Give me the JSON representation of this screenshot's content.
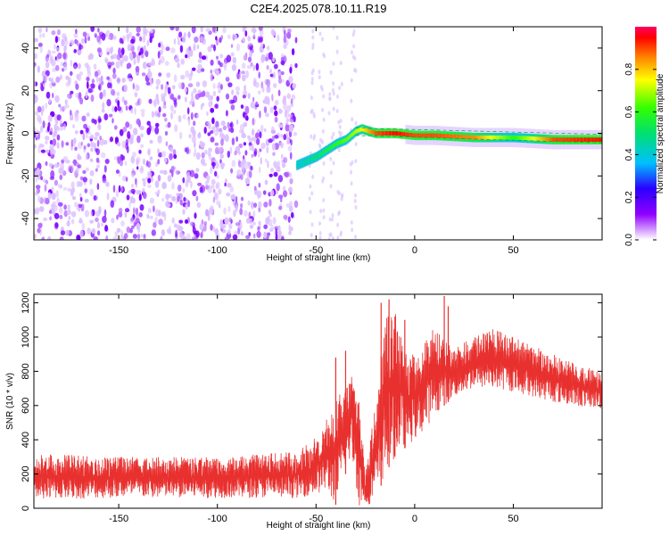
{
  "title": "C2E4.2025.078.10.11.R19",
  "chart_data": [
    {
      "type": "heatmap",
      "xlabel": "Height of straight line (km)",
      "ylabel": "Frequency (Hz)",
      "xlim": [
        -193,
        95
      ],
      "ylim": [
        -50,
        50
      ],
      "xticks": [
        -150,
        -100,
        -50,
        0,
        50
      ],
      "yticks": [
        -40,
        -20,
        0,
        20,
        40
      ],
      "colorbar": {
        "label": "Normalized spectral amplitude",
        "range": [
          0,
          1
        ],
        "ticks": [
          0.0,
          0.2,
          0.4,
          0.6,
          0.8
        ]
      },
      "ridge": {
        "x": [
          -60,
          -55,
          -50,
          -45,
          -40,
          -35,
          -30,
          -27,
          -20,
          -10,
          0,
          10,
          30,
          50,
          70,
          95
        ],
        "y": [
          -15,
          -13,
          -11,
          -8,
          -5,
          -3,
          1,
          2,
          0,
          0,
          -1,
          -1,
          -2,
          -2,
          -3,
          -3
        ],
        "amplitude": [
          0.4,
          0.45,
          0.5,
          0.55,
          0.6,
          0.65,
          0.7,
          0.75,
          0.9,
          0.95,
          0.9,
          0.9,
          0.85,
          0.6,
          0.9,
          0.95
        ]
      },
      "noise_region": [
        -193,
        -60
      ],
      "grid": false
    },
    {
      "type": "line",
      "xlabel": "Height of straight line (km)",
      "ylabel": "SNR (10 * v/v)",
      "xlim": [
        -193,
        95
      ],
      "ylim": [
        0,
        1250
      ],
      "xticks": [
        -150,
        -100,
        -50,
        0,
        50
      ],
      "yticks": [
        0,
        200,
        400,
        600,
        800,
        1000,
        1200
      ],
      "color": "#e8302e",
      "envelope": {
        "x": [
          -193,
          -150,
          -100,
          -60,
          -50,
          -45,
          -40,
          -35,
          -32,
          -28,
          -25,
          -20,
          -15,
          -10,
          -5,
          0,
          5,
          10,
          15,
          20,
          30,
          40,
          50,
          60,
          70,
          80,
          95
        ],
        "low": [
          50,
          60,
          60,
          60,
          80,
          100,
          20,
          200,
          300,
          10,
          20,
          30,
          200,
          300,
          350,
          400,
          450,
          550,
          600,
          650,
          700,
          700,
          680,
          650,
          620,
          600,
          580
        ],
        "high": [
          320,
          300,
          300,
          330,
          420,
          520,
          650,
          700,
          800,
          650,
          200,
          600,
          1100,
          1200,
          950,
          900,
          1000,
          1050,
          1000,
          950,
          1000,
          1050,
          1000,
          950,
          900,
          850,
          800
        ],
        "spikes": [
          [
            -40,
            880
          ],
          [
            -35,
            920
          ],
          [
            -17,
            1200
          ],
          [
            -13,
            1220
          ],
          [
            -10,
            1120
          ],
          [
            -5,
            1100
          ],
          [
            15,
            1240
          ],
          [
            17,
            1180
          ]
        ]
      },
      "grid": false
    }
  ]
}
